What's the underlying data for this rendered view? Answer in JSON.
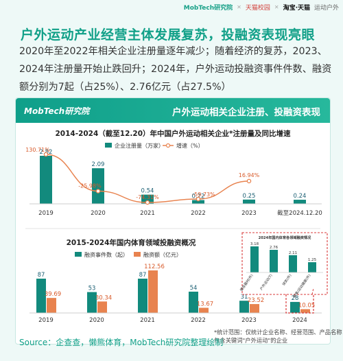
{
  "brand": {
    "logo": "MobTech研究院",
    "partner1": "天猫校园",
    "partner2": "淘宝·天猫",
    "partner3": "运动户外"
  },
  "headline": "户外运动产业经营主体发展复苏，投融资表现亮眼",
  "summary": "2020年至2022年相关企业注册量逐年减少；随着经济的复苏，2023、2024年注册量开始止跌回升；2024年，户外运动投融资事件件数、融资额分别为7起（占25%）、2.76亿元（占27.5%）",
  "card": {
    "logo": "MobTech研究院",
    "title": "户外运动相关企业注册、投融资表现"
  },
  "chart_data": [
    {
      "type": "bar",
      "title": "2014-2024（截至12.20）年中国户外运动相关企业*注册量及同比增速",
      "categories": [
        "2019",
        "2020",
        "2021",
        "2022",
        "2023",
        "截至2024.12.20"
      ],
      "series": [
        {
          "name": "企业注册量（万家）",
          "values": [
            2.82,
            2.09,
            0.54,
            0.22,
            0.25,
            0.24
          ],
          "color": "#128a7d"
        },
        {
          "name": "增速（%）",
          "type": "line",
          "values": [
            130.71,
            -25.98,
            -74.31,
            -59.73,
            16.94,
            null
          ],
          "labels": [
            "130.71%",
            "-25.98%",
            "-74.31%",
            "-59.73%",
            "16.94%",
            ""
          ],
          "color": "#e8834f"
        }
      ]
    },
    {
      "type": "bar",
      "title": "2015-2024年国内体育领域投融资概况",
      "categories": [
        "2019",
        "2020",
        "2021",
        "2022",
        "2023",
        "2024"
      ],
      "series": [
        {
          "name": "融资事件数（起）",
          "values": [
            87,
            53,
            87,
            54,
            31,
            28
          ],
          "color": "#128a7d"
        },
        {
          "name": "融资额（亿元）",
          "values": [
            39.69,
            30.34,
            112.56,
            13.67,
            23.52,
            10.05
          ],
          "color": "#e8834f"
        }
      ]
    },
    {
      "type": "bar",
      "title": "2024年国内体育各领域融资情况",
      "categories": [
        "健身器材(件)",
        "户外运动(T)",
        "球类(件)",
        "赛事/运动健康(件)"
      ],
      "values": [
        3.18,
        2.76,
        2.11,
        1.25
      ],
      "color": "#128a7d"
    }
  ],
  "note": "*统计范围：仅统计企业名称、经营范围、产品名称包含关键词\"户外运动\"的企业",
  "source": "Source：企查查，懒熊体育，MobTech研究院整理绘制"
}
